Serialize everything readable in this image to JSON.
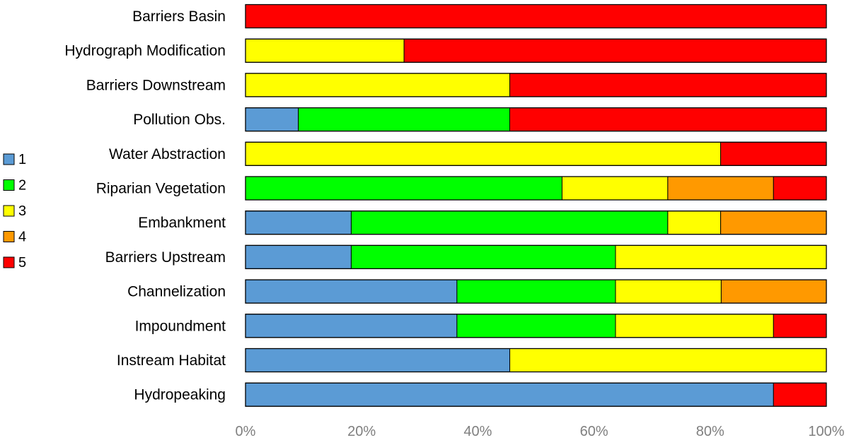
{
  "chart_data": {
    "type": "bar",
    "orientation": "horizontal",
    "stacked": "percent",
    "categories": [
      "Barriers Basin",
      "Hydrograph Modification",
      "Barriers Downstream",
      "Pollution Obs.",
      "Water Abstraction",
      "Riparian Vegetation",
      "Embankment",
      "Barriers Upstream",
      "Channelization",
      "Impoundment",
      "Instream Habitat",
      "Hydropeaking"
    ],
    "series": [
      {
        "name": "1",
        "color": "#5b9bd5",
        "values": [
          0,
          0,
          0,
          9.1,
          0,
          0,
          18.2,
          18.2,
          36.4,
          36.4,
          45.5,
          90.9
        ]
      },
      {
        "name": "2",
        "color": "#00ff00",
        "values": [
          0,
          0,
          0,
          36.4,
          0,
          54.5,
          54.5,
          45.5,
          27.3,
          27.3,
          0,
          0
        ]
      },
      {
        "name": "3",
        "color": "#ffff00",
        "values": [
          0,
          27.3,
          45.5,
          0,
          81.8,
          18.2,
          9.1,
          36.3,
          18.2,
          27.2,
          54.5,
          0
        ]
      },
      {
        "name": "4",
        "color": "#ff9900",
        "values": [
          0,
          0,
          0,
          0,
          0,
          18.2,
          18.2,
          0,
          18.1,
          0,
          0,
          0
        ]
      },
      {
        "name": "5",
        "color": "#ff0000",
        "values": [
          100,
          72.7,
          54.5,
          54.5,
          18.2,
          9.1,
          0,
          0,
          0,
          9.1,
          0,
          9.1
        ]
      }
    ],
    "x_ticks": [
      "0%",
      "20%",
      "40%",
      "60%",
      "80%",
      "100%"
    ],
    "xlim": [
      0,
      100
    ],
    "grid": false,
    "legend_placement": "left",
    "title": "",
    "xlabel": "",
    "ylabel": ""
  }
}
